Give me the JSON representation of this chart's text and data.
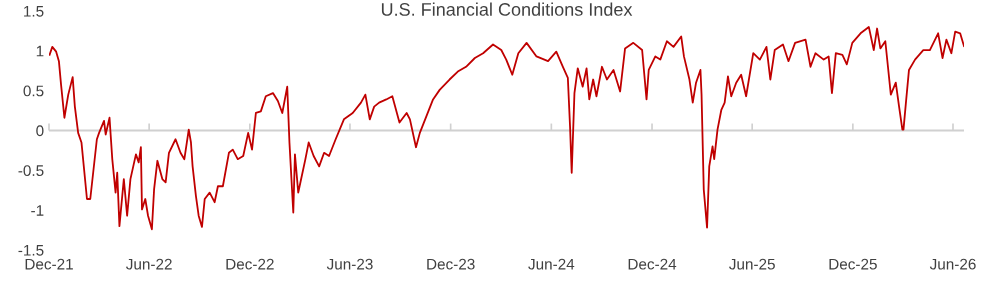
{
  "chart_data": {
    "type": "line",
    "title": "U.S. Financial Conditions Index",
    "xlim": [
      "2021-12-01",
      "2026-06-21"
    ],
    "xticks": [
      {
        "value": "2021-12-01",
        "label": "Dec-21"
      },
      {
        "value": "2022-06-01",
        "label": "Jun-22"
      },
      {
        "value": "2022-12-01",
        "label": "Dec-22"
      },
      {
        "value": "2023-06-01",
        "label": "Jun-23"
      },
      {
        "value": "2023-12-01",
        "label": "Dec-23"
      },
      {
        "value": "2024-06-01",
        "label": "Jun-24"
      },
      {
        "value": "2024-12-01",
        "label": "Dec-24"
      },
      {
        "value": "2025-06-01",
        "label": "Jun-25"
      },
      {
        "value": "2025-12-01",
        "label": "Dec-25"
      },
      {
        "value": "2026-06-01",
        "label": "Jun-26"
      }
    ],
    "ylim": [
      -1.5,
      1.5
    ],
    "yticks": [
      -1.5,
      -1,
      -0.5,
      0,
      0.5,
      1,
      1.5
    ],
    "marker": "none",
    "line_style": "solid",
    "ref_lines": [
      {
        "axis": "y",
        "value": 0,
        "color": "#d0d0d0"
      }
    ],
    "series": [
      {
        "color": "#c00000",
        "x": [
          "2021-12-02",
          "2021-12-07",
          "2021-12-14",
          "2021-12-19",
          "2021-12-23",
          "2021-12-29",
          "2022-01-05",
          "2022-01-13",
          "2022-01-17",
          "2022-01-23",
          "2022-01-29",
          "2022-02-08",
          "2022-02-14",
          "2022-02-26",
          "2022-03-02",
          "2022-03-11",
          "2022-03-14",
          "2022-03-21",
          "2022-03-26",
          "2022-04-01",
          "2022-04-04",
          "2022-04-08",
          "2022-04-16",
          "2022-04-22",
          "2022-04-28",
          "2022-05-08",
          "2022-05-13",
          "2022-05-17",
          "2022-05-19",
          "2022-05-25",
          "2022-05-30",
          "2022-06-06",
          "2022-06-10",
          "2022-06-16",
          "2022-06-25",
          "2022-07-01",
          "2022-07-07",
          "2022-07-19",
          "2022-07-28",
          "2022-08-04",
          "2022-08-12",
          "2022-08-16",
          "2022-08-19",
          "2022-08-25",
          "2022-08-30",
          "2022-09-05",
          "2022-09-10",
          "2022-09-19",
          "2022-09-28",
          "2022-10-04",
          "2022-10-13",
          "2022-10-24",
          "2022-10-31",
          "2022-11-09",
          "2022-11-19",
          "2022-11-28",
          "2022-12-05",
          "2022-12-12",
          "2022-12-21",
          "2022-12-30",
          "2023-01-12",
          "2023-01-21",
          "2023-01-29",
          "2023-02-07",
          "2023-02-11",
          "2023-02-18",
          "2023-02-21",
          "2023-02-27",
          "2023-03-03",
          "2023-03-12",
          "2023-03-18",
          "2023-03-27",
          "2023-04-06",
          "2023-04-15",
          "2023-04-24",
          "2023-05-06",
          "2023-05-21",
          "2023-06-06",
          "2023-06-21",
          "2023-06-29",
          "2023-07-07",
          "2023-07-15",
          "2023-07-24",
          "2023-08-06",
          "2023-08-17",
          "2023-08-30",
          "2023-09-12",
          "2023-09-18",
          "2023-09-29",
          "2023-10-06",
          "2023-10-18",
          "2023-10-30",
          "2023-11-11",
          "2023-11-29",
          "2023-12-14",
          "2023-12-29",
          "2024-01-14",
          "2024-01-29",
          "2024-02-16",
          "2024-03-02",
          "2024-03-11",
          "2024-03-22",
          "2024-04-02",
          "2024-04-17",
          "2024-05-05",
          "2024-05-26",
          "2024-06-10",
          "2024-06-22",
          "2024-07-01",
          "2024-07-05",
          "2024-07-08",
          "2024-07-13",
          "2024-07-19",
          "2024-07-28",
          "2024-08-04",
          "2024-08-09",
          "2024-08-16",
          "2024-08-22",
          "2024-09-01",
          "2024-09-10",
          "2024-09-22",
          "2024-10-04",
          "2024-10-13",
          "2024-10-28",
          "2024-11-13",
          "2024-11-21",
          "2024-11-25",
          "2024-12-07",
          "2024-12-16",
          "2024-12-28",
          "2025-01-09",
          "2025-01-23",
          "2025-01-28",
          "2025-02-07",
          "2025-02-13",
          "2025-02-19",
          "2025-02-27",
          "2025-03-01",
          "2025-03-05",
          "2025-03-11",
          "2025-03-15",
          "2025-03-21",
          "2025-03-24",
          "2025-03-30",
          "2025-04-06",
          "2025-04-12",
          "2025-04-18",
          "2025-04-24",
          "2025-05-03",
          "2025-05-12",
          "2025-05-21",
          "2025-06-03",
          "2025-06-15",
          "2025-06-27",
          "2025-07-04",
          "2025-07-12",
          "2025-07-27",
          "2025-08-06",
          "2025-08-18",
          "2025-09-06",
          "2025-09-15",
          "2025-09-24",
          "2025-10-09",
          "2025-10-18",
          "2025-10-24",
          "2025-10-31",
          "2025-11-12",
          "2025-11-20",
          "2025-11-30",
          "2025-12-15",
          "2025-12-30",
          "2026-01-08",
          "2026-01-14",
          "2026-01-20",
          "2026-01-29",
          "2026-02-08",
          "2026-02-17",
          "2026-02-23",
          "2026-03-01",
          "2026-03-03",
          "2026-03-08",
          "2026-03-13",
          "2026-03-24",
          "2026-04-08",
          "2026-04-20",
          "2026-05-05",
          "2026-05-13",
          "2026-05-20",
          "2026-05-29",
          "2026-06-05",
          "2026-06-14",
          "2026-06-21"
        ],
        "values": [
          0.95,
          1.05,
          0.99,
          0.87,
          0.57,
          0.16,
          0.45,
          0.67,
          0.3,
          -0.03,
          -0.15,
          -0.86,
          -0.86,
          -0.11,
          -0.03,
          0.12,
          -0.05,
          0.16,
          -0.36,
          -0.78,
          -0.53,
          -1.2,
          -0.61,
          -1.07,
          -0.61,
          -0.3,
          -0.4,
          -0.21,
          -0.99,
          -0.86,
          -1.07,
          -1.24,
          -0.74,
          -0.38,
          -0.61,
          -0.65,
          -0.28,
          -0.11,
          -0.28,
          -0.36,
          0.01,
          -0.15,
          -0.45,
          -0.82,
          -1.07,
          -1.21,
          -0.86,
          -0.78,
          -0.9,
          -0.7,
          -0.7,
          -0.28,
          -0.24,
          -0.36,
          -0.32,
          -0.03,
          -0.24,
          0.22,
          0.24,
          0.43,
          0.47,
          0.37,
          0.22,
          0.55,
          -0.15,
          -1.03,
          -0.3,
          -0.78,
          -0.65,
          -0.36,
          -0.15,
          -0.32,
          -0.45,
          -0.28,
          -0.32,
          -0.11,
          0.14,
          0.22,
          0.35,
          0.45,
          0.14,
          0.3,
          0.35,
          0.39,
          0.43,
          0.1,
          0.22,
          0.14,
          -0.21,
          -0.03,
          0.18,
          0.39,
          0.51,
          0.64,
          0.74,
          0.8,
          0.91,
          0.97,
          1.08,
          1.01,
          0.89,
          0.7,
          0.97,
          1.1,
          0.93,
          0.87,
          0.99,
          0.8,
          0.66,
          0.05,
          -0.53,
          0.47,
          0.78,
          0.55,
          0.78,
          0.39,
          0.64,
          0.43,
          0.8,
          0.64,
          0.76,
          0.49,
          1.03,
          1.1,
          1.01,
          0.39,
          0.76,
          0.93,
          0.89,
          1.12,
          1.05,
          1.18,
          0.93,
          0.64,
          0.35,
          0.6,
          0.76,
          0.45,
          -0.74,
          -1.22,
          -0.45,
          -0.2,
          -0.36,
          0.01,
          0.26,
          0.35,
          0.68,
          0.43,
          0.6,
          0.7,
          0.43,
          0.97,
          0.89,
          1.05,
          0.64,
          1.01,
          1.08,
          0.87,
          1.1,
          1.14,
          0.8,
          0.97,
          0.89,
          0.93,
          0.47,
          0.97,
          0.95,
          0.83,
          1.1,
          1.22,
          1.3,
          1.01,
          1.28,
          1.03,
          1.12,
          0.45,
          0.6,
          0.3,
          0.01,
          0.01,
          0.39,
          0.76,
          0.89,
          1.01,
          1.01,
          1.22,
          0.91,
          1.14,
          0.97,
          1.24,
          1.22,
          1.06
        ]
      }
    ]
  }
}
